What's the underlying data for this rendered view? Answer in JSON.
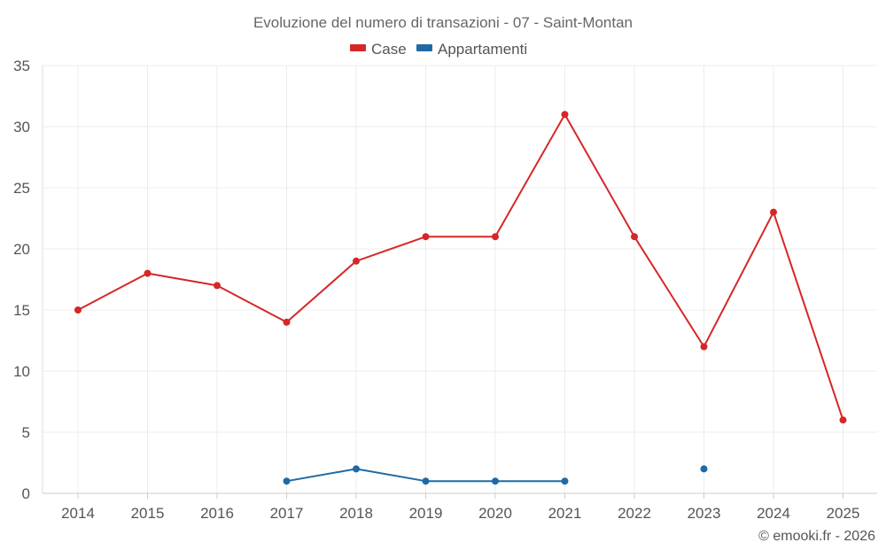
{
  "chart_data": {
    "type": "line",
    "title": "Evoluzione del numero di transazioni - 07 - Saint-Montan",
    "categories": [
      "2014",
      "2015",
      "2016",
      "2017",
      "2018",
      "2019",
      "2020",
      "2021",
      "2022",
      "2023",
      "2024",
      "2025"
    ],
    "series": [
      {
        "name": "Case",
        "color": "#d62728",
        "values": [
          15,
          18,
          17,
          14,
          19,
          21,
          21,
          31,
          21,
          12,
          23,
          6
        ]
      },
      {
        "name": "Appartamenti",
        "color": "#1f6aa5",
        "values": [
          null,
          null,
          null,
          1,
          2,
          1,
          1,
          1,
          null,
          2,
          null,
          null
        ]
      }
    ],
    "ylim": [
      0,
      35
    ],
    "yticks": [
      0,
      5,
      10,
      15,
      20,
      25,
      30,
      35
    ],
    "legend": "top-center",
    "grid": true,
    "credit": "© emooki.fr - 2026"
  }
}
